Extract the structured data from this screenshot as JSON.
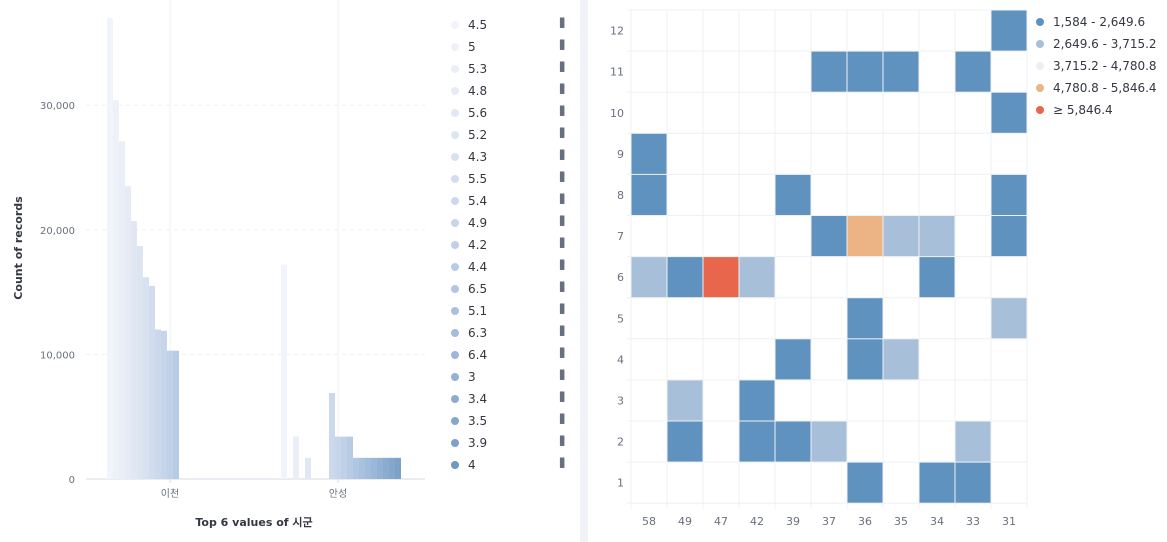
{
  "left_chart": {
    "axis_title_y": "Count of records",
    "axis_title_x": "Top 6 values of 시군",
    "legend_menu_icon": "vertical-dots-icon"
  },
  "right_chart": {
    "legend": [
      {
        "label": "1,584 - 2,649.6",
        "color": "#6092c0"
      },
      {
        "label": "2,649.6 - 3,715.2",
        "color": "#a8bfda"
      },
      {
        "label": "3,715.2 - 4,780.8",
        "color": "#ebeff5"
      },
      {
        "label": "4,780.8 - 5,846.4",
        "color": "#ecb385"
      },
      {
        "label": "≥ 5,846.4",
        "color": "#e7664c"
      }
    ]
  },
  "chart_data": [
    {
      "type": "bar",
      "xlabel": "Top 6 values of 시군",
      "ylabel": "Count of records",
      "ylim": [
        0,
        37000
      ],
      "yticks": [
        "0",
        "10,000",
        "20,000",
        "30,000"
      ],
      "ytick_values": [
        0,
        10000,
        20000,
        30000
      ],
      "categories": [
        "이천",
        "안성"
      ],
      "legend_position": "right",
      "series": [
        {
          "name": "4.5",
          "color": "#f1f4fa",
          "values": [
            37000,
            17200
          ]
        },
        {
          "name": "5",
          "color": "#eef2f8",
          "values": [
            30400,
            0
          ]
        },
        {
          "name": "5.3",
          "color": "#eaeef7",
          "values": [
            27100,
            3400
          ]
        },
        {
          "name": "4.8",
          "color": "#e6ebf5",
          "values": [
            23500,
            0
          ]
        },
        {
          "name": "5.6",
          "color": "#e1e8f3",
          "values": [
            20700,
            1700
          ]
        },
        {
          "name": "5.2",
          "color": "#dde5f1",
          "values": [
            18700,
            0
          ]
        },
        {
          "name": "4.3",
          "color": "#d7e1ef",
          "values": [
            16200,
            0
          ]
        },
        {
          "name": "5.5",
          "color": "#d1ddee",
          "values": [
            15500,
            0
          ]
        },
        {
          "name": "5.4",
          "color": "#ccd9ec",
          "values": [
            12000,
            6900
          ]
        },
        {
          "name": "4.9",
          "color": "#c6d5ea",
          "values": [
            11900,
            3400
          ]
        },
        {
          "name": "4.2",
          "color": "#bfd0e7",
          "values": [
            10300,
            3400
          ]
        },
        {
          "name": "4.4",
          "color": "#b8cbe5",
          "values": [
            10300,
            3400
          ]
        },
        {
          "name": "6.5",
          "color": "#b0c6e2",
          "values": [
            0,
            1700
          ]
        },
        {
          "name": "5.1",
          "color": "#a9c1df",
          "values": [
            0,
            1700
          ]
        },
        {
          "name": "6.3",
          "color": "#a2bcdc",
          "values": [
            0,
            1700
          ]
        },
        {
          "name": "6.4",
          "color": "#9bb7d9",
          "values": [
            0,
            1700
          ]
        },
        {
          "name": "3",
          "color": "#93b1d5",
          "values": [
            0,
            1700
          ]
        },
        {
          "name": "3.4",
          "color": "#8caccf",
          "values": [
            0,
            1700
          ]
        },
        {
          "name": "3.5",
          "color": "#85a7cb",
          "values": [
            0,
            1700
          ]
        },
        {
          "name": "3.9",
          "color": "#7ea2c7",
          "values": [
            0,
            1700
          ]
        },
        {
          "name": "4",
          "color": "#6f98c3",
          "values": [
            0,
            0
          ]
        }
      ]
    },
    {
      "type": "heatmap",
      "x_categories": [
        "58",
        "49",
        "47",
        "42",
        "39",
        "37",
        "36",
        "35",
        "34",
        "33",
        "31"
      ],
      "y_categories": [
        "12",
        "11",
        "10",
        "9",
        "8",
        "7",
        "6",
        "5",
        "4",
        "3",
        "2",
        "1"
      ],
      "legend_position": "top-right",
      "color_bins": [
        "1,584 - 2,649.6",
        "2,649.6 - 3,715.2",
        "3,715.2 - 4,780.8",
        "4,780.8 - 5,846.4",
        "≥ 5,846.4"
      ],
      "cells": [
        {
          "x": "31",
          "y": "12",
          "bin": 0
        },
        {
          "x": "37",
          "y": "11",
          "bin": 0
        },
        {
          "x": "36",
          "y": "11",
          "bin": 0
        },
        {
          "x": "35",
          "y": "11",
          "bin": 0
        },
        {
          "x": "33",
          "y": "11",
          "bin": 0
        },
        {
          "x": "31",
          "y": "10",
          "bin": 0
        },
        {
          "x": "58",
          "y": "9",
          "bin": 0
        },
        {
          "x": "58",
          "y": "8",
          "bin": 0
        },
        {
          "x": "39",
          "y": "8",
          "bin": 0
        },
        {
          "x": "31",
          "y": "8",
          "bin": 0
        },
        {
          "x": "37",
          "y": "7",
          "bin": 0
        },
        {
          "x": "36",
          "y": "7",
          "bin": 3
        },
        {
          "x": "35",
          "y": "7",
          "bin": 1
        },
        {
          "x": "34",
          "y": "7",
          "bin": 1
        },
        {
          "x": "31",
          "y": "7",
          "bin": 0
        },
        {
          "x": "58",
          "y": "6",
          "bin": 1
        },
        {
          "x": "49",
          "y": "6",
          "bin": 0
        },
        {
          "x": "47",
          "y": "6",
          "bin": 4
        },
        {
          "x": "42",
          "y": "6",
          "bin": 1
        },
        {
          "x": "34",
          "y": "6",
          "bin": 0
        },
        {
          "x": "36",
          "y": "5",
          "bin": 0
        },
        {
          "x": "31",
          "y": "5",
          "bin": 1
        },
        {
          "x": "39",
          "y": "4",
          "bin": 0
        },
        {
          "x": "36",
          "y": "4",
          "bin": 0
        },
        {
          "x": "35",
          "y": "4",
          "bin": 1
        },
        {
          "x": "49",
          "y": "3",
          "bin": 1
        },
        {
          "x": "42",
          "y": "3",
          "bin": 0
        },
        {
          "x": "49",
          "y": "2",
          "bin": 0
        },
        {
          "x": "42",
          "y": "2",
          "bin": 0
        },
        {
          "x": "39",
          "y": "2",
          "bin": 0
        },
        {
          "x": "37",
          "y": "2",
          "bin": 1
        },
        {
          "x": "33",
          "y": "2",
          "bin": 1
        },
        {
          "x": "36",
          "y": "1",
          "bin": 0
        },
        {
          "x": "34",
          "y": "1",
          "bin": 0
        },
        {
          "x": "33",
          "y": "1",
          "bin": 0
        }
      ]
    }
  ]
}
